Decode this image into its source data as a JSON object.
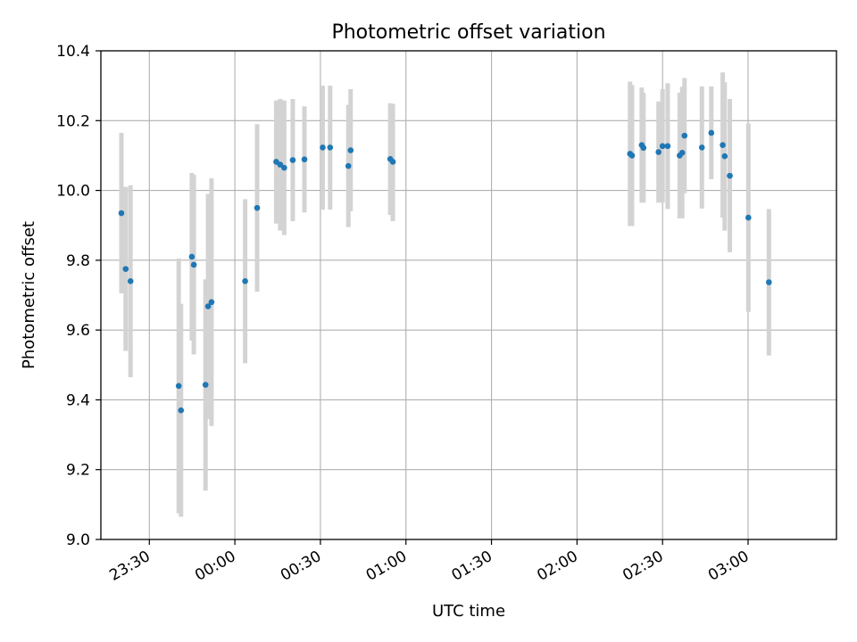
{
  "chart_data": {
    "type": "scatter",
    "title": "Photometric offset variation",
    "xlabel": "UTC time",
    "ylabel": "Photometric offset",
    "ylim": [
      9.0,
      10.4
    ],
    "xlim": [
      "23:13",
      "03:31"
    ],
    "x_ticks": [
      "23:30",
      "00:00",
      "00:30",
      "01:00",
      "01:30",
      "02:00",
      "02:30",
      "03:00"
    ],
    "y_ticks": [
      "9.0",
      "9.2",
      "9.4",
      "9.6",
      "9.8",
      "10.0",
      "10.2",
      "10.4"
    ],
    "x_tick_labels_rotated": true,
    "grid": true,
    "legend": "none",
    "colors": {
      "point": "#1f77b4",
      "errorbar": "#d3d3d3",
      "grid": "#b0b0b0"
    },
    "series": [
      {
        "points": [
          {
            "x": "23:20.2",
            "y": 9.935,
            "lo": 9.705,
            "hi": 10.165
          },
          {
            "x": "23:21.7",
            "y": 9.775,
            "lo": 9.54,
            "hi": 10.01
          },
          {
            "x": "23:23.4",
            "y": 9.74,
            "lo": 9.465,
            "hi": 10.015
          },
          {
            "x": "23:40.3",
            "y": 9.44,
            "lo": 9.075,
            "hi": 9.805
          },
          {
            "x": "23:41.1",
            "y": 9.37,
            "lo": 9.065,
            "hi": 9.675
          },
          {
            "x": "23:44.9",
            "y": 9.81,
            "lo": 9.57,
            "hi": 10.05
          },
          {
            "x": "23:45.6",
            "y": 9.787,
            "lo": 9.53,
            "hi": 10.045
          },
          {
            "x": "23:49.7",
            "y": 9.443,
            "lo": 9.14,
            "hi": 9.745
          },
          {
            "x": "23:50.6",
            "y": 9.668,
            "lo": 9.345,
            "hi": 9.99
          },
          {
            "x": "23:51.8",
            "y": 9.68,
            "lo": 9.325,
            "hi": 10.035
          },
          {
            "x": "00:03.6",
            "y": 9.74,
            "lo": 9.505,
            "hi": 9.975
          },
          {
            "x": "00:07.8",
            "y": 9.95,
            "lo": 9.71,
            "hi": 10.19
          },
          {
            "x": "00:14.5",
            "y": 10.082,
            "lo": 9.905,
            "hi": 10.258
          },
          {
            "x": "00:15.9",
            "y": 10.074,
            "lo": 9.885,
            "hi": 10.262
          },
          {
            "x": "00:17.3",
            "y": 10.065,
            "lo": 9.872,
            "hi": 10.258
          },
          {
            "x": "00:20.3",
            "y": 10.087,
            "lo": 9.912,
            "hi": 10.262
          },
          {
            "x": "00:24.4",
            "y": 10.089,
            "lo": 9.937,
            "hi": 10.241
          },
          {
            "x": "00:30.8",
            "y": 10.123,
            "lo": 9.945,
            "hi": 10.3
          },
          {
            "x": "00:33.4",
            "y": 10.123,
            "lo": 9.945,
            "hi": 10.3
          },
          {
            "x": "00:39.8",
            "y": 10.07,
            "lo": 9.895,
            "hi": 10.245
          },
          {
            "x": "00:40.6",
            "y": 10.115,
            "lo": 9.94,
            "hi": 10.29
          },
          {
            "x": "00:54.5",
            "y": 10.09,
            "lo": 9.93,
            "hi": 10.25
          },
          {
            "x": "00:55.4",
            "y": 10.082,
            "lo": 9.912,
            "hi": 10.248
          },
          {
            "x": "02:18.6",
            "y": 10.105,
            "lo": 9.898,
            "hi": 10.312
          },
          {
            "x": "02:19.3",
            "y": 10.1,
            "lo": 9.898,
            "hi": 10.302
          },
          {
            "x": "02:22.7",
            "y": 10.13,
            "lo": 9.965,
            "hi": 10.295
          },
          {
            "x": "02:23.3",
            "y": 10.122,
            "lo": 9.965,
            "hi": 10.28
          },
          {
            "x": "02:28.6",
            "y": 10.11,
            "lo": 9.965,
            "hi": 10.255
          },
          {
            "x": "02:30.0",
            "y": 10.127,
            "lo": 9.965,
            "hi": 10.29
          },
          {
            "x": "02:31.8",
            "y": 10.127,
            "lo": 9.947,
            "hi": 10.307
          },
          {
            "x": "02:36.0",
            "y": 10.1,
            "lo": 9.92,
            "hi": 10.28
          },
          {
            "x": "02:36.9",
            "y": 10.108,
            "lo": 9.92,
            "hi": 10.297
          },
          {
            "x": "02:37.7",
            "y": 10.157,
            "lo": 9.992,
            "hi": 10.322
          },
          {
            "x": "02:43.8",
            "y": 10.123,
            "lo": 9.948,
            "hi": 10.298
          },
          {
            "x": "02:47.1",
            "y": 10.165,
            "lo": 10.032,
            "hi": 10.298
          },
          {
            "x": "02:51.1",
            "y": 10.13,
            "lo": 9.922,
            "hi": 10.338
          },
          {
            "x": "02:51.8",
            "y": 10.098,
            "lo": 9.885,
            "hi": 10.31
          },
          {
            "x": "02:53.6",
            "y": 10.042,
            "lo": 9.823,
            "hi": 10.262
          },
          {
            "x": "03:00.1",
            "y": 9.922,
            "lo": 9.652,
            "hi": 10.192
          },
          {
            "x": "03:07.3",
            "y": 9.737,
            "lo": 9.527,
            "hi": 9.947
          }
        ]
      }
    ]
  }
}
